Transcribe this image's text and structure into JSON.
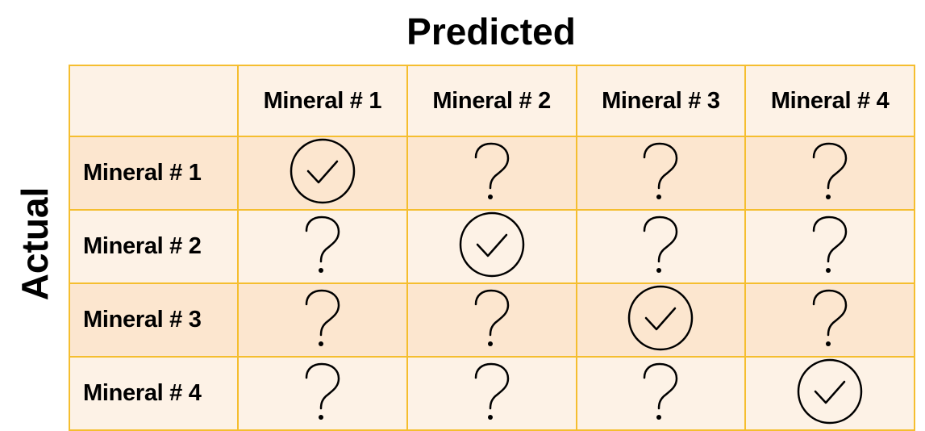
{
  "titles": {
    "predicted": "Predicted",
    "actual": "Actual"
  },
  "columns": [
    "Mineral # 1",
    "Mineral # 2",
    "Mineral # 3",
    "Mineral # 4"
  ],
  "rows": [
    {
      "label": "Mineral # 1",
      "cells": [
        "check-circle-icon",
        "question-mark-icon",
        "question-mark-icon",
        "question-mark-icon"
      ]
    },
    {
      "label": "Mineral # 2",
      "cells": [
        "question-mark-icon",
        "check-circle-icon",
        "question-mark-icon",
        "question-mark-icon"
      ]
    },
    {
      "label": "Mineral # 3",
      "cells": [
        "question-mark-icon",
        "question-mark-icon",
        "check-circle-icon",
        "question-mark-icon"
      ]
    },
    {
      "label": "Mineral # 4",
      "cells": [
        "question-mark-icon",
        "question-mark-icon",
        "question-mark-icon",
        "check-circle-icon"
      ]
    }
  ],
  "colors": {
    "border": "#f5be2f",
    "header_fill": "#fdf2e6",
    "row_fill_odd": "#fce6cf",
    "row_fill_even": "#fdf2e6"
  }
}
